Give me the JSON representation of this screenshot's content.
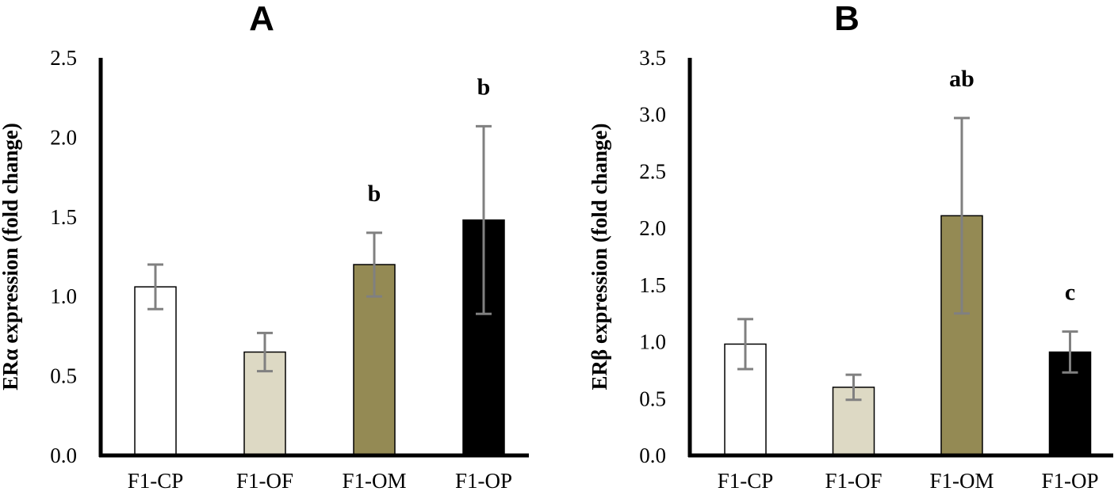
{
  "chart_data": [
    {
      "type": "bar",
      "panel_label": "A",
      "ylabel": "ERα expression (fold change)",
      "xlabel": "",
      "categories": [
        "F1-CP",
        "F1-OF",
        "F1-OM",
        "F1-OP"
      ],
      "values": [
        1.06,
        0.65,
        1.2,
        1.48
      ],
      "error_bars": [
        0.14,
        0.12,
        0.2,
        0.59
      ],
      "significance_labels": [
        "",
        "",
        "b",
        "b"
      ],
      "bar_colors": [
        "#ffffff",
        "#ddd9c4",
        "#948a54",
        "#000000"
      ],
      "ylim": [
        0,
        2.5
      ],
      "yticks": [
        "0.0",
        "0.5",
        "1.0",
        "1.5",
        "2.0",
        "2.5"
      ],
      "grid": false,
      "legend": "none"
    },
    {
      "type": "bar",
      "panel_label": "B",
      "ylabel": "ERβ expression (fold change)",
      "xlabel": "",
      "categories": [
        "F1-CP",
        "F1-OF",
        "F1-OM",
        "F1-OP"
      ],
      "values": [
        0.98,
        0.6,
        2.11,
        0.91
      ],
      "error_bars": [
        0.22,
        0.11,
        0.86,
        0.18
      ],
      "significance_labels": [
        "",
        "",
        "ab",
        "c"
      ],
      "bar_colors": [
        "#ffffff",
        "#ddd9c4",
        "#948a54",
        "#000000"
      ],
      "ylim": [
        0,
        3.5
      ],
      "yticks": [
        "0.0",
        "0.5",
        "1.0",
        "1.5",
        "2.0",
        "2.5",
        "3.0",
        "3.5"
      ],
      "grid": false,
      "legend": "none"
    }
  ],
  "style": {
    "axis_color": "#000000",
    "bar_outline_color": "#000000",
    "error_bar_color": "#808080"
  }
}
